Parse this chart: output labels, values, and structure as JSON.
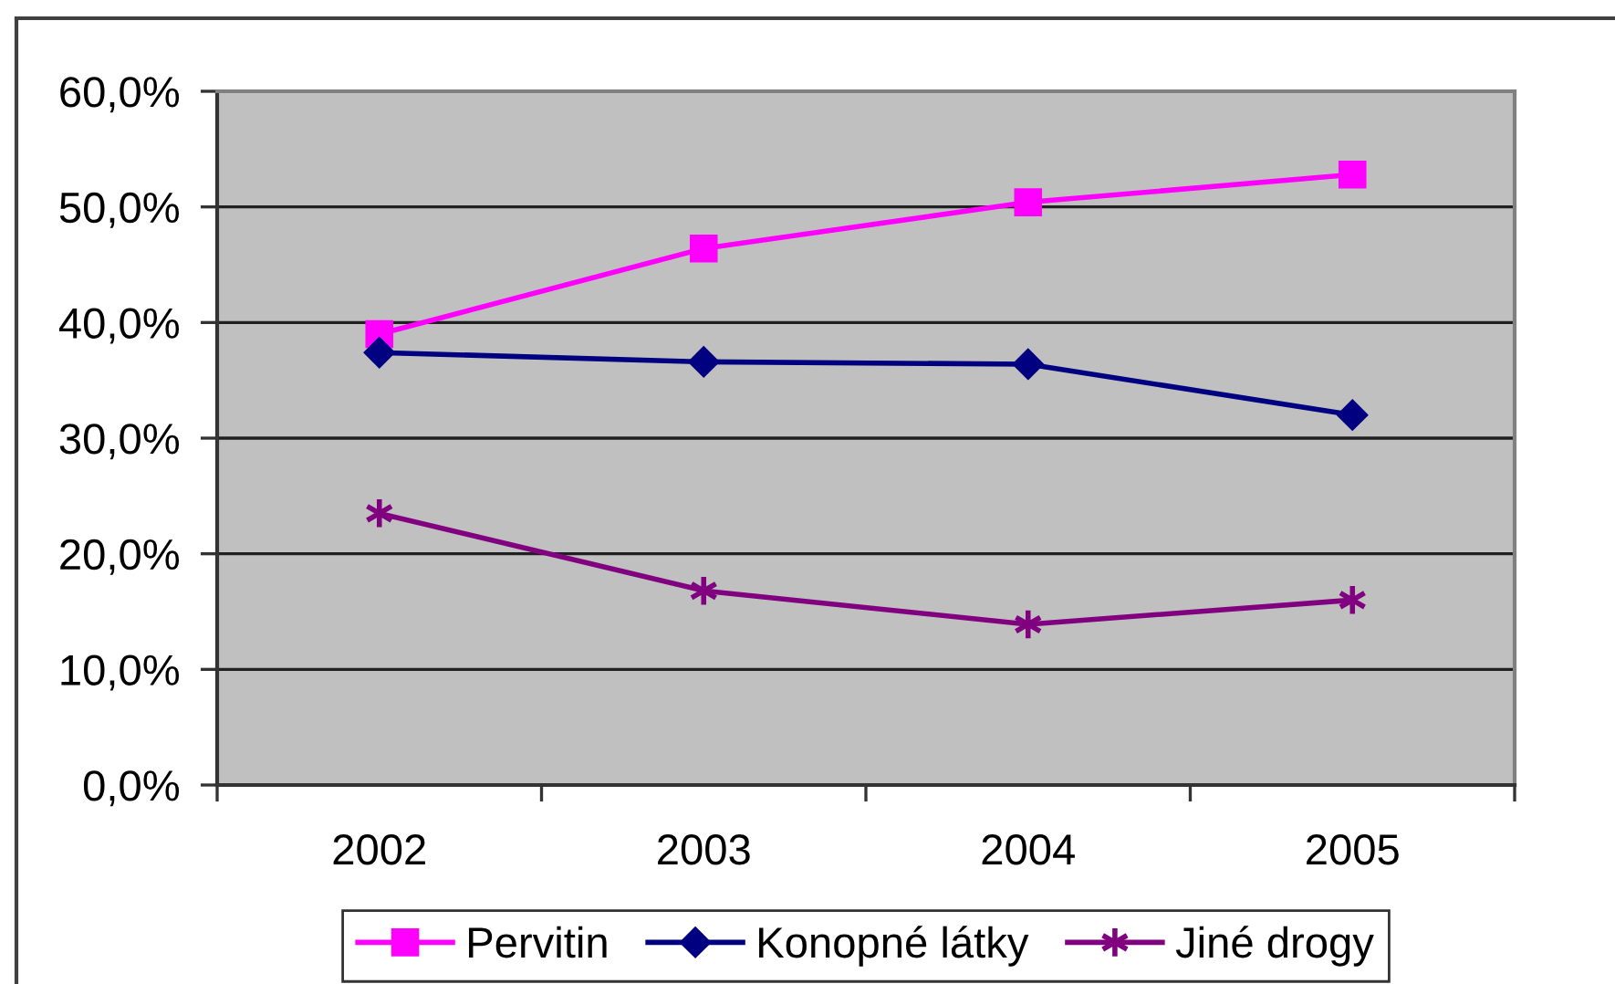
{
  "chart_data": {
    "type": "line",
    "categories": [
      "2002",
      "2003",
      "2004",
      "2005"
    ],
    "series": [
      {
        "name": "Pervitin",
        "color": "#ff00ff",
        "marker": "square",
        "values": [
          39.0,
          46.4,
          50.4,
          52.8
        ]
      },
      {
        "name": "Konopné látky",
        "color": "#000080",
        "marker": "diamond",
        "values": [
          37.4,
          36.6,
          36.4,
          32.0
        ]
      },
      {
        "name": "Jiné drogy",
        "color": "#800080",
        "marker": "cross",
        "values": [
          23.5,
          16.8,
          13.9,
          16.0
        ]
      }
    ],
    "ylim": [
      0,
      60
    ],
    "yticks": [
      {
        "value": 0,
        "label": "0,0%"
      },
      {
        "value": 10,
        "label": "10,0%"
      },
      {
        "value": 20,
        "label": "20,0%"
      },
      {
        "value": 30,
        "label": "30,0%"
      },
      {
        "value": 40,
        "label": "40,0%"
      },
      {
        "value": 50,
        "label": "50,0%"
      },
      {
        "value": 60,
        "label": "60,0%"
      }
    ],
    "grid": "y",
    "legend": "bottom",
    "line_style": "solid"
  }
}
